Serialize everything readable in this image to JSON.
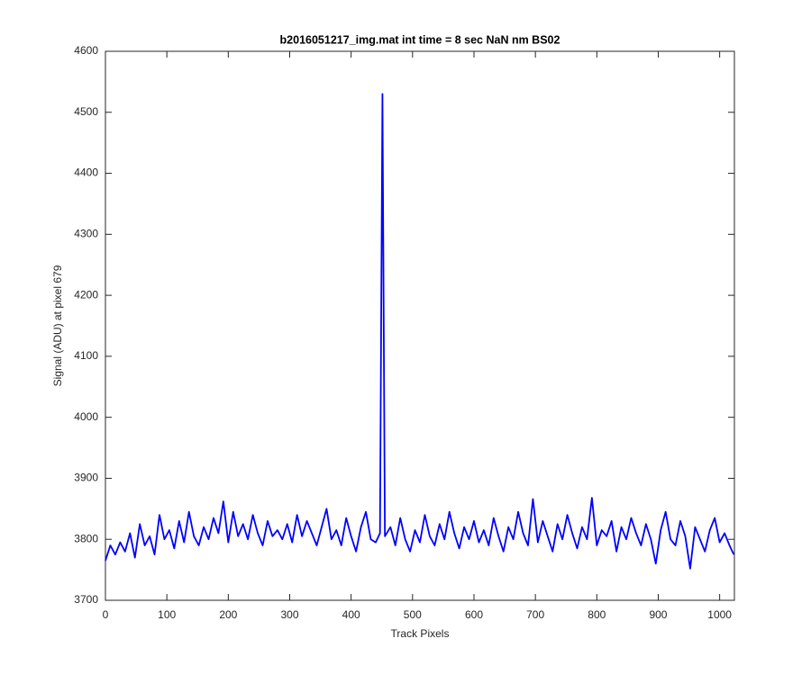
{
  "chart_data": {
    "type": "line",
    "title": "b2016051217_img.mat int time = 8 sec  NaN nm BS02",
    "x_label": "Track Pixels",
    "y_label": "Signal (ADU) at pixel 679",
    "xlim": [
      0,
      1024
    ],
    "ylim": [
      3700,
      4600
    ],
    "xticks": [
      0,
      100,
      200,
      300,
      400,
      500,
      600,
      700,
      800,
      900,
      1000
    ],
    "yticks": [
      3700,
      3800,
      3900,
      4000,
      4100,
      4200,
      4300,
      4400,
      4500,
      4600
    ],
    "grid": false,
    "x": [
      0,
      8,
      16,
      24,
      32,
      40,
      48,
      56,
      64,
      72,
      80,
      88,
      96,
      104,
      112,
      120,
      128,
      136,
      144,
      152,
      160,
      168,
      176,
      184,
      192,
      200,
      208,
      216,
      224,
      232,
      240,
      248,
      256,
      264,
      272,
      280,
      288,
      296,
      304,
      312,
      320,
      328,
      336,
      344,
      352,
      360,
      368,
      376,
      384,
      392,
      400,
      408,
      416,
      424,
      432,
      440,
      447,
      451,
      455,
      464,
      472,
      480,
      488,
      496,
      504,
      512,
      520,
      528,
      536,
      544,
      552,
      560,
      568,
      576,
      584,
      592,
      600,
      608,
      616,
      624,
      632,
      640,
      648,
      656,
      664,
      672,
      680,
      688,
      696,
      704,
      712,
      720,
      728,
      736,
      744,
      752,
      760,
      768,
      776,
      784,
      792,
      800,
      808,
      816,
      824,
      832,
      840,
      848,
      856,
      864,
      872,
      880,
      888,
      896,
      904,
      912,
      920,
      928,
      936,
      944,
      952,
      960,
      968,
      976,
      984,
      992,
      1000,
      1008,
      1016,
      1023
    ],
    "series": [
      {
        "name": "signal",
        "color": "#0000ff",
        "values": [
          3765,
          3790,
          3775,
          3795,
          3780,
          3810,
          3770,
          3825,
          3790,
          3805,
          3775,
          3840,
          3800,
          3815,
          3785,
          3830,
          3795,
          3845,
          3805,
          3790,
          3820,
          3800,
          3835,
          3810,
          3862,
          3795,
          3845,
          3805,
          3825,
          3800,
          3840,
          3810,
          3790,
          3830,
          3805,
          3815,
          3800,
          3825,
          3795,
          3840,
          3805,
          3830,
          3810,
          3790,
          3820,
          3850,
          3800,
          3815,
          3790,
          3835,
          3805,
          3780,
          3820,
          3845,
          3800,
          3795,
          3810,
          4530,
          3805,
          3820,
          3790,
          3835,
          3800,
          3780,
          3815,
          3795,
          3840,
          3805,
          3790,
          3825,
          3800,
          3845,
          3810,
          3785,
          3820,
          3800,
          3830,
          3795,
          3815,
          3790,
          3835,
          3805,
          3780,
          3820,
          3800,
          3845,
          3810,
          3790,
          3866,
          3795,
          3830,
          3805,
          3780,
          3825,
          3800,
          3840,
          3810,
          3785,
          3820,
          3800,
          3868,
          3790,
          3815,
          3805,
          3830,
          3780,
          3820,
          3800,
          3835,
          3810,
          3790,
          3825,
          3800,
          3760,
          3815,
          3845,
          3800,
          3790,
          3830,
          3805,
          3752,
          3820,
          3800,
          3780,
          3815,
          3835,
          3795,
          3810,
          3790,
          3775
        ]
      }
    ]
  }
}
